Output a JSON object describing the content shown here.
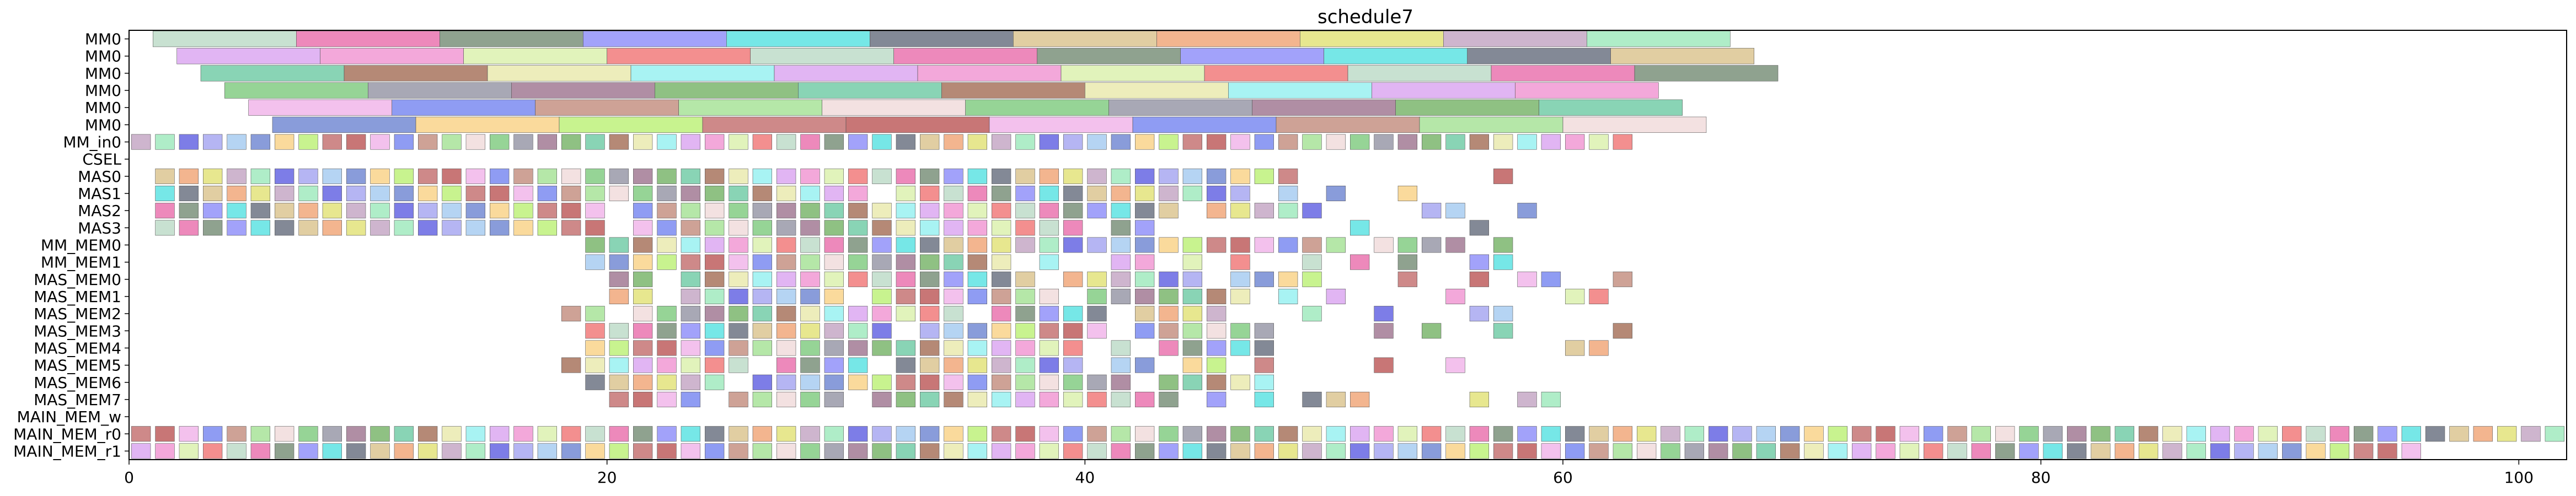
{
  "chart_data": {
    "type": "gantt",
    "title": "schedule7",
    "xlabel": "",
    "ylabel": "",
    "xlim": [
      0,
      102
    ],
    "x_ticks": [
      0,
      20,
      40,
      60,
      80,
      100
    ],
    "x_tick_labels": [
      "0",
      "20",
      "40",
      "60",
      "80",
      "100"
    ],
    "rows": [
      "MM0",
      "MM0",
      "MM0",
      "MM0",
      "MM0",
      "MM0",
      "MM_in0",
      "CSEL",
      "MAS0",
      "MAS1",
      "MAS2",
      "MAS3",
      "MM_MEM0",
      "MM_MEM1",
      "MAS_MEM0",
      "MAS_MEM1",
      "MAS_MEM2",
      "MAS_MEM3",
      "MAS_MEM4",
      "MAS_MEM5",
      "MAS_MEM6",
      "MAS_MEM7",
      "MAIN_MEM_w",
      "MAIN_MEM_r0",
      "MAIN_MEM_r1"
    ],
    "mm_bars": [
      [
        [
          1,
          7
        ],
        [
          7,
          13
        ],
        [
          13,
          19
        ],
        [
          19,
          25
        ],
        [
          25,
          31
        ],
        [
          31,
          37
        ],
        [
          37,
          43
        ],
        [
          43,
          49
        ],
        [
          49,
          55
        ],
        [
          55,
          61
        ],
        [
          61,
          67
        ]
      ],
      [
        [
          2,
          8
        ],
        [
          8,
          14
        ],
        [
          14,
          20
        ],
        [
          20,
          26
        ],
        [
          26,
          32
        ],
        [
          32,
          38
        ],
        [
          38,
          44
        ],
        [
          44,
          50
        ],
        [
          50,
          56
        ],
        [
          56,
          62
        ],
        [
          62,
          68
        ]
      ],
      [
        [
          3,
          9
        ],
        [
          9,
          15
        ],
        [
          15,
          21
        ],
        [
          21,
          27
        ],
        [
          27,
          33
        ],
        [
          33,
          39
        ],
        [
          39,
          45
        ],
        [
          45,
          51
        ],
        [
          51,
          57
        ],
        [
          57,
          63
        ],
        [
          63,
          69
        ]
      ],
      [
        [
          4,
          10
        ],
        [
          10,
          16
        ],
        [
          16,
          22
        ],
        [
          22,
          28
        ],
        [
          28,
          34
        ],
        [
          34,
          40
        ],
        [
          40,
          46
        ],
        [
          46,
          52
        ],
        [
          52,
          58
        ],
        [
          58,
          64
        ]
      ],
      [
        [
          5,
          11
        ],
        [
          11,
          17
        ],
        [
          17,
          23
        ],
        [
          23,
          29
        ],
        [
          29,
          35
        ],
        [
          35,
          41
        ],
        [
          41,
          47
        ],
        [
          47,
          53
        ],
        [
          53,
          59
        ],
        [
          59,
          65
        ]
      ],
      [
        [
          6,
          12
        ],
        [
          12,
          18
        ],
        [
          18,
          24
        ],
        [
          24,
          30
        ],
        [
          30,
          36
        ],
        [
          36,
          42
        ],
        [
          42,
          48
        ],
        [
          48,
          54
        ],
        [
          54,
          60
        ],
        [
          60,
          66
        ]
      ]
    ],
    "unit_rows": {
      "MM_in0": [
        [
          0,
          63
        ]
      ],
      "MAS0": [
        [
          1,
          49
        ],
        [
          57,
          58
        ]
      ],
      "MAS1": [
        [
          1,
          31
        ],
        [
          32,
          47
        ],
        [
          48,
          49
        ],
        [
          50,
          51
        ],
        [
          53,
          54
        ]
      ],
      "MAS2": [
        [
          1,
          20
        ],
        [
          21,
          44
        ],
        [
          45,
          50
        ],
        [
          54,
          56
        ],
        [
          58,
          59
        ]
      ],
      "MAS3": [
        [
          1,
          20
        ],
        [
          21,
          40
        ],
        [
          41,
          43
        ],
        [
          51,
          52
        ],
        [
          56,
          57
        ]
      ],
      "MM_MEM0": [
        [
          19,
          51
        ],
        [
          52,
          56
        ],
        [
          57,
          58
        ]
      ],
      "MM_MEM1": [
        [
          19,
          37
        ],
        [
          38,
          39
        ],
        [
          41,
          43
        ],
        [
          44,
          45
        ],
        [
          46,
          47
        ],
        [
          49,
          50
        ],
        [
          51,
          52
        ],
        [
          53,
          54
        ],
        [
          56,
          58
        ]
      ],
      "MAS_MEM0": [
        [
          20,
          22
        ],
        [
          23,
          38
        ],
        [
          39,
          45
        ],
        [
          46,
          50
        ],
        [
          53,
          54
        ],
        [
          56,
          57
        ],
        [
          58,
          60
        ],
        [
          62,
          63
        ]
      ],
      "MAS_MEM1": [
        [
          20,
          22
        ],
        [
          23,
          30
        ],
        [
          31,
          39
        ],
        [
          40,
          47
        ],
        [
          48,
          49
        ],
        [
          50,
          51
        ],
        [
          55,
          56
        ],
        [
          60,
          62
        ]
      ],
      "MAS_MEM2": [
        [
          18,
          20
        ],
        [
          21,
          35
        ],
        [
          36,
          41
        ],
        [
          42,
          46
        ],
        [
          49,
          50
        ],
        [
          52,
          53
        ],
        [
          56,
          58
        ]
      ],
      "MAS_MEM3": [
        [
          19,
          32
        ],
        [
          33,
          41
        ],
        [
          42,
          48
        ],
        [
          52,
          53
        ],
        [
          54,
          55
        ],
        [
          57,
          58
        ],
        [
          62,
          63
        ]
      ],
      "MAS_MEM4": [
        [
          19,
          40
        ],
        [
          41,
          42
        ],
        [
          43,
          48
        ],
        [
          60,
          62
        ]
      ],
      "MAS_MEM5": [
        [
          18,
          26
        ],
        [
          27,
          31
        ],
        [
          32,
          40
        ],
        [
          41,
          43
        ],
        [
          44,
          46
        ],
        [
          47,
          48
        ],
        [
          52,
          53
        ],
        [
          55,
          56
        ]
      ],
      "MAS_MEM6": [
        [
          19,
          25
        ],
        [
          26,
          42
        ],
        [
          43,
          48
        ]
      ],
      "MAS_MEM7": [
        [
          20,
          24
        ],
        [
          25,
          30
        ],
        [
          31,
          44
        ],
        [
          45,
          46
        ],
        [
          47,
          48
        ],
        [
          49,
          52
        ],
        [
          56,
          57
        ],
        [
          58,
          60
        ]
      ],
      "MAIN_MEM_r0": [
        [
          0,
          102
        ]
      ],
      "MAIN_MEM_r1": [
        [
          0,
          96
        ]
      ]
    },
    "palette": [
      "#b9d9c4",
      "#8ff0f0",
      "#9a6e8a",
      "#c08878",
      "#b8f070",
      "#5858e0",
      "#d8c088",
      "#e868a8",
      "#d8a0f0",
      "#70b060",
      "#a0e090",
      "#c06868",
      "#a0a0f0",
      "#f0a070",
      "#708870",
      "#f090d0",
      "#68c8a0",
      "#f0d8d8",
      "#b85050",
      "#a0c8f0",
      "#e0e070",
      "#8888f8",
      "#d8f0a8",
      "#a06850",
      "#78c878",
      "#f0b0e8",
      "#6880d0",
      "#c0a0c0",
      "#50e0e0",
      "#f07070",
      "#e8e8a8",
      "#9090a0",
      "#7080f0",
      "#f8d080",
      "#98e8b8",
      "#606878"
    ],
    "grid": false,
    "legend": "none"
  }
}
